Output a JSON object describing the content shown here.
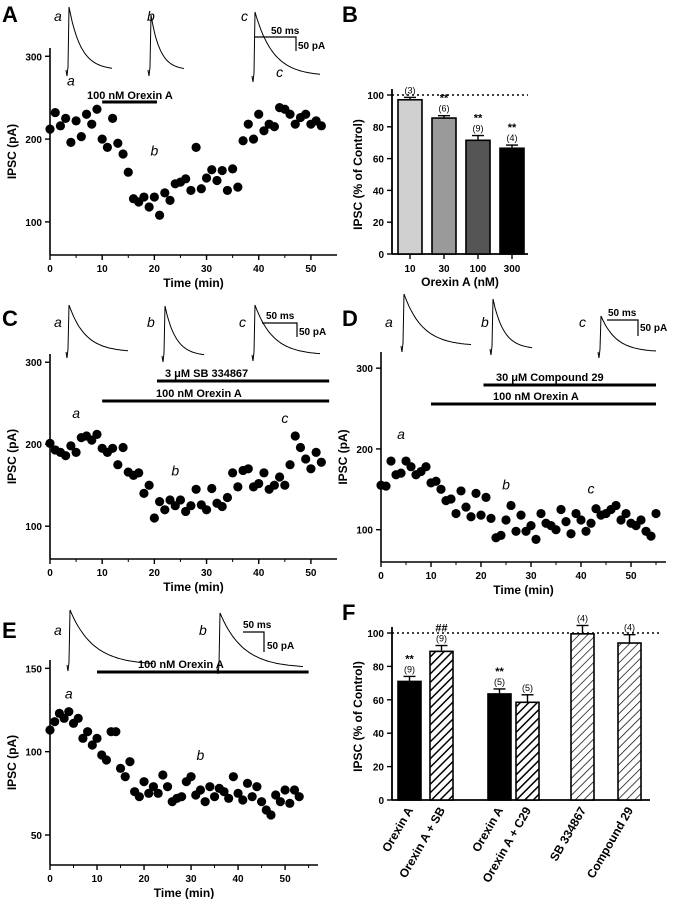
{
  "panel_labels": [
    "A",
    "B",
    "C",
    "D",
    "E",
    "F"
  ],
  "scale_bars": {
    "time": "50 ms",
    "current": "50 pA"
  },
  "chart_data": [
    {
      "panel": "A",
      "type": "scatter",
      "xlabel": "Time (min)",
      "ylabel": "IPSC (pA)",
      "xlim": [
        0,
        55
      ],
      "ylim": [
        60,
        310
      ],
      "xticks": [
        "0",
        "10",
        "20",
        "30",
        "40",
        "50"
      ],
      "xtick_values": [
        0,
        10,
        20,
        30,
        40,
        50
      ],
      "yticks": [
        "100",
        "200",
        "300"
      ],
      "ytick_values": [
        100,
        200,
        300
      ],
      "trace_labels": [
        "a",
        "b",
        "c"
      ],
      "bars": [
        {
          "label": "100 nM Orexin A",
          "x_start": 10,
          "x_end": 20.5
        }
      ],
      "annotations": [
        {
          "text": "a",
          "x": 4,
          "y": 265
        },
        {
          "text": "b",
          "x": 20,
          "y": 180
        },
        {
          "text": "c",
          "x": 44,
          "y": 275
        }
      ],
      "x": [
        0,
        1,
        2,
        3,
        4,
        5,
        6,
        7,
        8,
        9,
        10,
        11,
        12,
        13,
        14,
        15,
        16,
        17,
        18,
        19,
        20,
        21,
        22,
        23,
        24,
        25,
        26,
        27,
        28,
        29,
        30,
        31,
        32,
        33,
        34,
        35,
        36,
        37,
        38,
        39,
        40,
        41,
        42,
        43,
        44,
        45,
        46,
        47,
        48,
        49,
        50,
        51,
        52
      ],
      "y": [
        212,
        232,
        216,
        225,
        196,
        222,
        203,
        230,
        218,
        236,
        200,
        190,
        225,
        195,
        182,
        160,
        128,
        124,
        130,
        118,
        130,
        108,
        135,
        126,
        146,
        148,
        152,
        138,
        190,
        140,
        153,
        163,
        150,
        162,
        138,
        164,
        142,
        198,
        218,
        200,
        230,
        210,
        218,
        215,
        238,
        236,
        230,
        218,
        226,
        230,
        218,
        222,
        216
      ]
    },
    {
      "panel": "B",
      "type": "bar",
      "xlabel": "Orexin A (nM)",
      "ylabel": "IPSC (% of Control)",
      "categories": [
        "10",
        "30",
        "100",
        "300"
      ],
      "values": [
        97,
        85.5,
        71.5,
        66.5
      ],
      "errors": [
        1.5,
        1.5,
        3,
        2
      ],
      "n": [
        "(3)",
        "(6)",
        "(9)",
        "(4)"
      ],
      "significance": [
        "",
        "**",
        "**",
        "**"
      ],
      "colors": [
        "#d0d0d0",
        "#9a9a9a",
        "#555555",
        "#000000"
      ],
      "ylim": [
        0,
        100
      ],
      "yticks": [
        "0",
        "20",
        "40",
        "60",
        "80",
        "100"
      ],
      "ytick_values": [
        0,
        20,
        40,
        60,
        80,
        100
      ],
      "reference_line": 100
    },
    {
      "panel": "C",
      "type": "scatter",
      "xlabel": "Time (min)",
      "ylabel": "IPSC (pA)",
      "xlim": [
        0,
        55
      ],
      "ylim": [
        60,
        310
      ],
      "xticks": [
        "0",
        "10",
        "20",
        "30",
        "40",
        "50"
      ],
      "xtick_values": [
        0,
        10,
        20,
        30,
        40,
        50
      ],
      "yticks": [
        "100",
        "200",
        "300"
      ],
      "ytick_values": [
        100,
        200,
        300
      ],
      "trace_labels": [
        "a",
        "b",
        "c"
      ],
      "bars": [
        {
          "label": "3 μM SB 334867",
          "x_start": 20.5,
          "x_end": 53.5
        },
        {
          "label": "100 nM Orexin A",
          "x_start": 10,
          "x_end": 53.5
        }
      ],
      "annotations": [
        {
          "text": "a",
          "x": 5,
          "y": 232
        },
        {
          "text": "b",
          "x": 24,
          "y": 162
        },
        {
          "text": "c",
          "x": 45,
          "y": 226
        }
      ],
      "x": [
        0,
        1,
        2,
        3,
        4,
        5,
        6,
        7,
        8,
        9,
        10,
        11,
        12,
        13,
        14,
        15,
        16,
        17,
        18,
        19,
        20,
        21,
        22,
        23,
        24,
        25,
        26,
        27,
        28,
        29,
        30,
        31,
        32,
        33,
        34,
        35,
        36,
        37,
        38,
        39,
        40,
        41,
        42,
        43,
        44,
        45,
        46,
        47,
        48,
        49,
        50,
        51,
        52
      ],
      "y": [
        201,
        193,
        190,
        186,
        198,
        190,
        208,
        210,
        205,
        212,
        195,
        190,
        195,
        175,
        196,
        166,
        162,
        165,
        140,
        150,
        110,
        130,
        120,
        132,
        125,
        132,
        118,
        125,
        145,
        126,
        120,
        146,
        128,
        124,
        135,
        165,
        148,
        168,
        170,
        148,
        152,
        165,
        145,
        150,
        160,
        150,
        175,
        210,
        196,
        182,
        170,
        190,
        178
      ]
    },
    {
      "panel": "D",
      "type": "scatter",
      "xlabel": "Time (min)",
      "ylabel": "IPSC (pA)",
      "xlim": [
        0,
        57
      ],
      "ylim": [
        60,
        320
      ],
      "xticks": [
        "0",
        "10",
        "20",
        "30",
        "40",
        "50"
      ],
      "xtick_values": [
        0,
        10,
        20,
        30,
        40,
        50
      ],
      "yticks": [
        "100",
        "200",
        "300"
      ],
      "ytick_values": [
        100,
        200,
        300
      ],
      "trace_labels": [
        "a",
        "b",
        "c"
      ],
      "bars": [
        {
          "label": "30 μM Compound 29",
          "x_start": 20.5,
          "x_end": 55
        },
        {
          "label": "100 nM Orexin A",
          "x_start": 10,
          "x_end": 55
        }
      ],
      "annotations": [
        {
          "text": "a",
          "x": 4,
          "y": 212
        },
        {
          "text": "b",
          "x": 25,
          "y": 150
        },
        {
          "text": "c",
          "x": 42,
          "y": 145
        }
      ],
      "x": [
        0,
        1,
        2,
        3,
        4,
        5,
        6,
        7,
        8,
        9,
        10,
        11,
        12,
        13,
        14,
        15,
        16,
        17,
        18,
        19,
        20,
        21,
        22,
        23,
        24,
        25,
        26,
        27,
        28,
        29,
        30,
        31,
        32,
        33,
        34,
        35,
        36,
        37,
        38,
        39,
        40,
        41,
        42,
        43,
        44,
        45,
        46,
        47,
        48,
        49,
        50,
        51,
        52,
        53,
        54,
        55
      ],
      "y": [
        155,
        154,
        185,
        168,
        170,
        185,
        178,
        168,
        172,
        178,
        158,
        160,
        150,
        136,
        138,
        120,
        148,
        128,
        116,
        145,
        118,
        140,
        114,
        90,
        93,
        112,
        130,
        98,
        118,
        98,
        105,
        88,
        120,
        108,
        105,
        100,
        125,
        110,
        95,
        120,
        112,
        98,
        108,
        126,
        118,
        120,
        125,
        130,
        112,
        120,
        108,
        105,
        112,
        98,
        92,
        120
      ]
    },
    {
      "panel": "E",
      "type": "scatter",
      "xlabel": "Time (min)",
      "ylabel": "IPSC (pA)",
      "xlim": [
        0,
        57
      ],
      "ylim": [
        32,
        155
      ],
      "xticks": [
        "0",
        "10",
        "20",
        "30",
        "40",
        "50"
      ],
      "xtick_values": [
        0,
        10,
        20,
        30,
        40,
        50
      ],
      "yticks": [
        "50",
        "100",
        "150"
      ],
      "ytick_values": [
        50,
        100,
        150
      ],
      "trace_labels": [
        "a",
        "b"
      ],
      "bars": [
        {
          "label": "100 nM Orexin A",
          "x_start": 10,
          "x_end": 55
        }
      ],
      "annotations": [
        {
          "text": "a",
          "x": 4,
          "y": 132
        },
        {
          "text": "b",
          "x": 32,
          "y": 95
        }
      ],
      "x": [
        0,
        1,
        2,
        3,
        4,
        5,
        6,
        7,
        8,
        9,
        10,
        11,
        12,
        13,
        14,
        15,
        16,
        17,
        18,
        19,
        20,
        21,
        22,
        23,
        24,
        25,
        26,
        27,
        28,
        29,
        30,
        31,
        32,
        33,
        34,
        35,
        36,
        37,
        38,
        39,
        40,
        41,
        42,
        43,
        44,
        45,
        46,
        47,
        48,
        49,
        50,
        51,
        52,
        53
      ],
      "y": [
        113,
        118,
        123,
        120,
        124,
        117,
        120,
        108,
        112,
        104,
        108,
        98,
        95,
        112,
        112,
        90,
        85,
        94,
        76,
        73,
        82,
        75,
        79,
        75,
        86,
        79,
        70,
        72,
        73,
        82,
        85,
        74,
        77,
        70,
        79,
        73,
        78,
        76,
        72,
        85,
        75,
        71,
        81,
        73,
        79,
        70,
        65,
        62,
        74,
        70,
        77,
        69,
        77,
        73
      ]
    },
    {
      "panel": "F",
      "type": "bar",
      "xlabel": "",
      "ylabel": "IPSC (% of Control)",
      "categories": [
        "Orexin A",
        "Orexin A + SB",
        "Orexin A",
        "Orexin A + C29",
        "SB 334867",
        "Compound 29"
      ],
      "values": [
        71,
        89,
        63.5,
        58.5,
        99.5,
        94
      ],
      "errors": [
        3,
        3.5,
        3,
        4.5,
        5,
        5
      ],
      "n": [
        "(9)",
        "(9)",
        "(5)",
        "(5)",
        "(4)",
        "(4)"
      ],
      "significance": [
        "**",
        "##",
        "**",
        "",
        "",
        ""
      ],
      "fills": [
        "solid",
        "hatch",
        "solid",
        "hatch",
        "hatch-light",
        "hatch-light"
      ],
      "ylim": [
        0,
        100
      ],
      "yticks": [
        "0",
        "20",
        "40",
        "60",
        "80",
        "100"
      ],
      "ytick_values": [
        0,
        20,
        40,
        60,
        80,
        100
      ],
      "reference_line": 100
    }
  ]
}
